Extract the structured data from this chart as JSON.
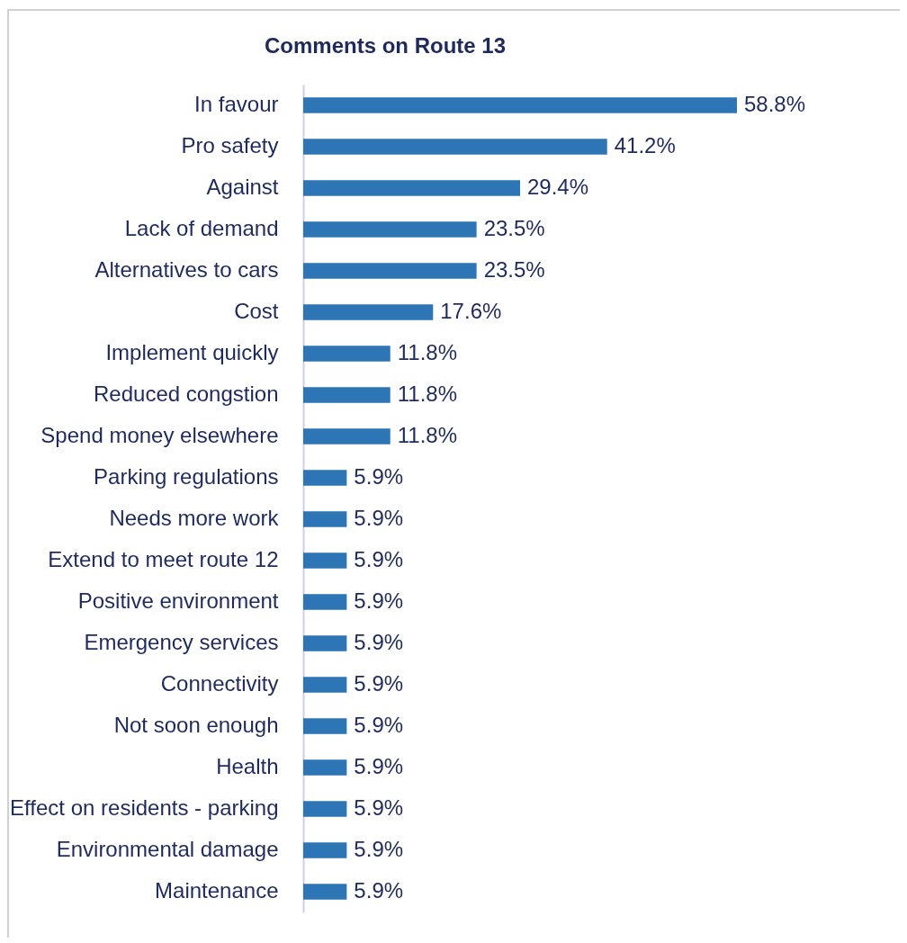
{
  "chart_data": {
    "type": "bar",
    "orientation": "horizontal",
    "title": "Comments on Route 13",
    "categories": [
      "In favour",
      "Pro safety",
      "Against",
      "Lack of demand",
      "Alternatives to cars",
      "Cost",
      "Implement quickly",
      "Reduced congstion",
      "Spend money elsewhere",
      "Parking regulations",
      "Needs more work",
      "Extend to meet route 12",
      "Positive environment",
      "Emergency services",
      "Connectivity",
      "Not soon enough",
      "Health",
      "Effect on residents - parking",
      "Environmental damage",
      "Maintenance"
    ],
    "values": [
      58.8,
      41.2,
      29.4,
      23.5,
      23.5,
      17.6,
      11.8,
      11.8,
      11.8,
      5.9,
      5.9,
      5.9,
      5.9,
      5.9,
      5.9,
      5.9,
      5.9,
      5.9,
      5.9,
      5.9
    ],
    "value_labels": [
      "58.8%",
      "41.2%",
      "29.4%",
      "23.5%",
      "23.5%",
      "17.6%",
      "11.8%",
      "11.8%",
      "11.8%",
      "5.9%",
      "5.9%",
      "5.9%",
      "5.9%",
      "5.9%",
      "5.9%",
      "5.9%",
      "5.9%",
      "5.9%",
      "5.9%",
      "5.9%"
    ],
    "color": "#2e75b6"
  }
}
